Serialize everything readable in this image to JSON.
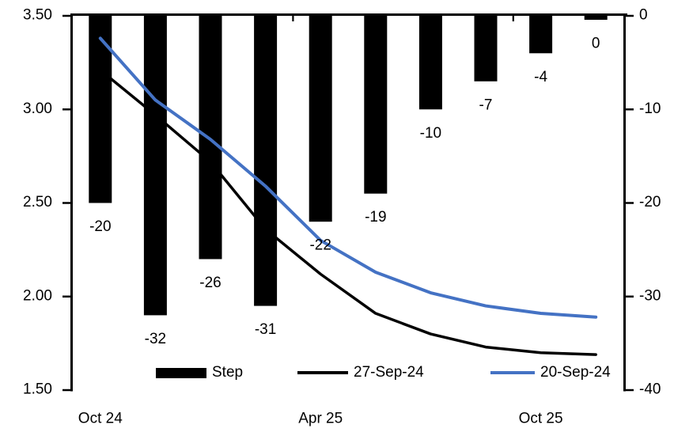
{
  "chart_data": {
    "type": "combo-bar-line",
    "title": "",
    "n_categories": 10,
    "bars": {
      "name": "Step",
      "axis": "right",
      "color": "#000000",
      "values": [
        -20,
        -32,
        -26,
        -31,
        -22,
        -19,
        -10,
        -7,
        -4,
        0
      ],
      "labels": [
        "-20",
        "-32",
        "-26",
        "-31",
        "-22",
        "-19",
        "-10",
        "-7",
        "-4",
        "0"
      ]
    },
    "lines": [
      {
        "name": "27-Sep-24",
        "axis": "left",
        "color": "#000000",
        "stroke_width": 3.5,
        "values": [
          3.21,
          2.97,
          2.72,
          2.36,
          2.12,
          1.91,
          1.8,
          1.73,
          1.7,
          1.69
        ]
      },
      {
        "name": "20-Sep-24",
        "axis": "left",
        "color": "#4472c4",
        "stroke_width": 4,
        "values": [
          3.38,
          3.05,
          2.84,
          2.59,
          2.3,
          2.13,
          2.02,
          1.95,
          1.91,
          1.89
        ]
      }
    ],
    "left_axis": {
      "min": 1.5,
      "max": 3.5,
      "tick_values": [
        3.5,
        3.0,
        2.5,
        2.0,
        1.5
      ],
      "tick_labels": [
        "3.50",
        "3.00",
        "2.50",
        "2.00",
        "1.50"
      ]
    },
    "right_axis": {
      "min": -40,
      "max": 0,
      "tick_values": [
        0,
        -10,
        -20,
        -30,
        -40
      ],
      "tick_labels": [
        "0",
        "-10",
        "-20",
        "-30",
        "-40"
      ]
    },
    "x_axis": {
      "tick_labels": [
        "Oct 24",
        "Apr 25",
        "Oct 25"
      ],
      "tick_label_category_index": [
        0,
        4,
        8
      ],
      "top_boundary_tick_indices": [
        4,
        8
      ]
    },
    "legend": [
      {
        "label": "Step",
        "swatch": "bar",
        "color": "#000000"
      },
      {
        "label": "27-Sep-24",
        "swatch": "line",
        "color": "#000000"
      },
      {
        "label": "20-Sep-24",
        "swatch": "line",
        "color": "#4472c4"
      }
    ]
  }
}
